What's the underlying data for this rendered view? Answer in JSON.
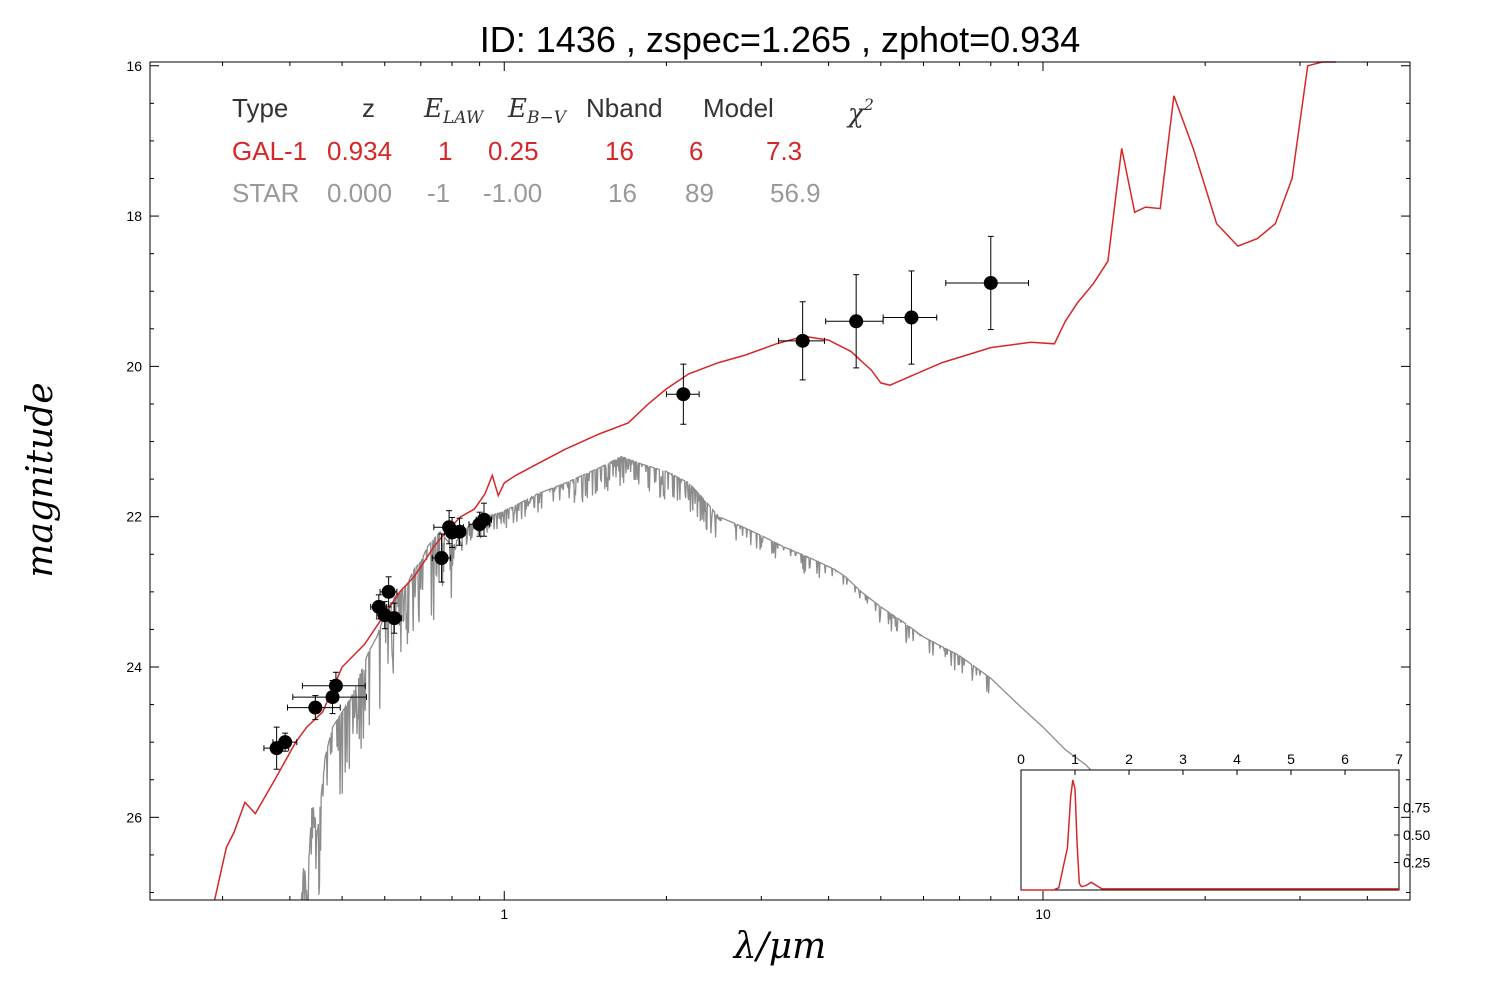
{
  "chart_data": {
    "type": "scatter",
    "title": "ID:  1436  , zspec=1.265 , zphot=0.934",
    "xlabel": "λ/μm",
    "ylabel": "magnitude",
    "xscale": "log",
    "xlim": [
      0.22,
      48
    ],
    "ylim": [
      27.1,
      15.95
    ],
    "x_ticks": [
      1,
      10
    ],
    "y_ticks": [
      16,
      18,
      20,
      22,
      24,
      26
    ],
    "grid": false,
    "legend_position": "top-left",
    "colors": {
      "galaxy": "#d62728",
      "star": "#8c8c8c",
      "points": "#000000"
    },
    "fit_table": {
      "headers": [
        "Type",
        "z",
        "E_LAW",
        "E_B-V",
        "Nband",
        "Model",
        "χ²"
      ],
      "rows": [
        {
          "type": "GAL-1",
          "z": "0.934",
          "elaw": "1",
          "ebv": "0.25",
          "nband": "16",
          "model": "6",
          "chi2": "7.3",
          "color": "#d62728"
        },
        {
          "type": "STAR",
          "z": "0.000",
          "elaw": "-1",
          "ebv": "-1.00",
          "nband": "16",
          "model": "89",
          "chi2": "56.9",
          "color": "#999999"
        }
      ]
    },
    "series": [
      {
        "kind": "photometry",
        "x": [
          0.378,
          0.392,
          0.446,
          0.48,
          0.487,
          0.585,
          0.6,
          0.61,
          0.625,
          0.765,
          0.79,
          0.8,
          0.826,
          0.9,
          0.917,
          2.15,
          3.58,
          4.5,
          5.7,
          8.0
        ],
        "y": [
          25.08,
          25.0,
          24.54,
          24.4,
          24.25,
          23.2,
          23.31,
          23.0,
          23.35,
          22.55,
          22.14,
          22.21,
          22.2,
          22.1,
          22.04,
          20.37,
          19.66,
          19.4,
          19.35,
          18.89
        ],
        "y_err": [
          0.28,
          0.12,
          0.16,
          0.22,
          0.18,
          0.16,
          0.18,
          0.2,
          0.2,
          0.32,
          0.22,
          0.2,
          0.18,
          0.16,
          0.22,
          0.4,
          0.52,
          0.62,
          0.62,
          0.62
        ],
        "x_err_lo": [
          0.02,
          0.02,
          0.05,
          0.075,
          0.065,
          0.02,
          0.02,
          0.022,
          0.02,
          0.03,
          0.05,
          0.025,
          0.02,
          0.04,
          0.03,
          0.15,
          0.35,
          0.55,
          0.65,
          1.4
        ],
        "x_err_hi": [
          0.02,
          0.02,
          0.05,
          0.075,
          0.065,
          0.02,
          0.02,
          0.022,
          0.02,
          0.03,
          0.05,
          0.025,
          0.02,
          0.04,
          0.03,
          0.15,
          0.35,
          0.55,
          0.65,
          1.4
        ]
      },
      {
        "kind": "galaxy-model",
        "x": [
          0.29,
          0.305,
          0.315,
          0.33,
          0.345,
          0.375,
          0.41,
          0.43,
          0.46,
          0.48,
          0.5,
          0.55,
          0.6,
          0.64,
          0.68,
          0.71,
          0.74,
          0.78,
          0.83,
          0.88,
          0.92,
          0.95,
          0.975,
          1.0,
          1.05,
          1.15,
          1.3,
          1.5,
          1.7,
          1.85,
          2.0,
          2.2,
          2.5,
          2.8,
          3.2,
          3.6,
          4.0,
          4.4,
          4.8,
          5.0,
          5.2,
          5.6,
          6.5,
          8.0,
          9.5,
          10.5,
          11.0,
          11.6,
          12.4,
          13.2,
          14.0,
          14.8,
          15.5,
          16.5,
          17.5,
          19.0,
          21.0,
          23.0,
          25.0,
          27.0,
          29.0,
          31.0,
          33.0,
          35.0
        ],
        "y": [
          27.15,
          26.4,
          26.2,
          25.8,
          25.95,
          25.5,
          25.0,
          24.8,
          24.6,
          24.3,
          24.0,
          23.7,
          23.3,
          23.0,
          22.8,
          22.6,
          22.4,
          22.2,
          22.0,
          21.9,
          21.7,
          21.45,
          21.72,
          21.55,
          21.45,
          21.3,
          21.1,
          20.9,
          20.75,
          20.5,
          20.3,
          20.1,
          19.95,
          19.85,
          19.7,
          19.6,
          19.65,
          19.8,
          20.05,
          20.22,
          20.25,
          20.15,
          19.95,
          19.75,
          19.68,
          19.7,
          19.4,
          19.15,
          18.9,
          18.6,
          17.1,
          17.95,
          17.88,
          17.9,
          16.4,
          17.1,
          18.1,
          18.4,
          18.3,
          18.1,
          17.5,
          16.0,
          15.95,
          15.92
        ]
      },
      {
        "kind": "star-model",
        "x": [
          0.42,
          0.425,
          0.43,
          0.44,
          0.45,
          0.465,
          0.48,
          0.5,
          0.52,
          0.54,
          0.56,
          0.58,
          0.6,
          0.62,
          0.64,
          0.66,
          0.68,
          0.7,
          0.72,
          0.74,
          0.76,
          0.78,
          0.8,
          0.84,
          0.88,
          0.92,
          0.98,
          1.05,
          1.15,
          1.3,
          1.5,
          1.65,
          1.8,
          2.0,
          2.2,
          2.3,
          2.4,
          2.5,
          2.7,
          3.0,
          3.3,
          3.7,
          4.1,
          4.3,
          4.6,
          5.0,
          5.5,
          6.0,
          7.0,
          8.0,
          9.0,
          10.0,
          11.0,
          12.0,
          13.0,
          14.0
        ],
        "y": [
          27.1,
          26.6,
          27.0,
          25.8,
          26.2,
          25.2,
          24.8,
          24.6,
          24.4,
          24.1,
          23.8,
          23.6,
          23.3,
          23.1,
          23.0,
          22.9,
          22.7,
          22.6,
          22.4,
          22.3,
          22.2,
          22.3,
          22.4,
          22.2,
          22.05,
          22.0,
          21.95,
          21.85,
          21.7,
          21.55,
          21.35,
          21.2,
          21.3,
          21.4,
          21.55,
          21.7,
          21.85,
          22.0,
          22.1,
          22.25,
          22.4,
          22.55,
          22.7,
          22.8,
          23.0,
          23.2,
          23.4,
          23.6,
          23.85,
          24.15,
          24.5,
          24.8,
          25.1,
          25.3,
          25.55,
          25.75
        ],
        "noise_x_range": [
          0.35,
          2.5
        ],
        "noise_amplitude": 1.1
      }
    ],
    "inset": {
      "type": "line",
      "xlim": [
        0,
        7
      ],
      "ylim": [
        0,
        1.0
      ],
      "x_ticks": [
        "0",
        "1",
        "2",
        "3",
        "4",
        "5",
        "6",
        "7"
      ],
      "y_ticks": [
        "0.25",
        "0.50",
        "0.75"
      ],
      "x": [
        0.0,
        0.6,
        0.7,
        0.8,
        0.86,
        0.92,
        0.96,
        1.0,
        1.04,
        1.08,
        1.12,
        1.2,
        1.3,
        1.4,
        1.5,
        2.0,
        3.0,
        4.0,
        5.0,
        6.0,
        7.0
      ],
      "y": [
        0.0,
        0.0,
        0.02,
        0.25,
        0.38,
        0.85,
        1.0,
        0.92,
        0.4,
        0.06,
        0.03,
        0.04,
        0.07,
        0.04,
        0.01,
        0.01,
        0.01,
        0.01,
        0.01,
        0.01,
        0.01
      ]
    }
  }
}
